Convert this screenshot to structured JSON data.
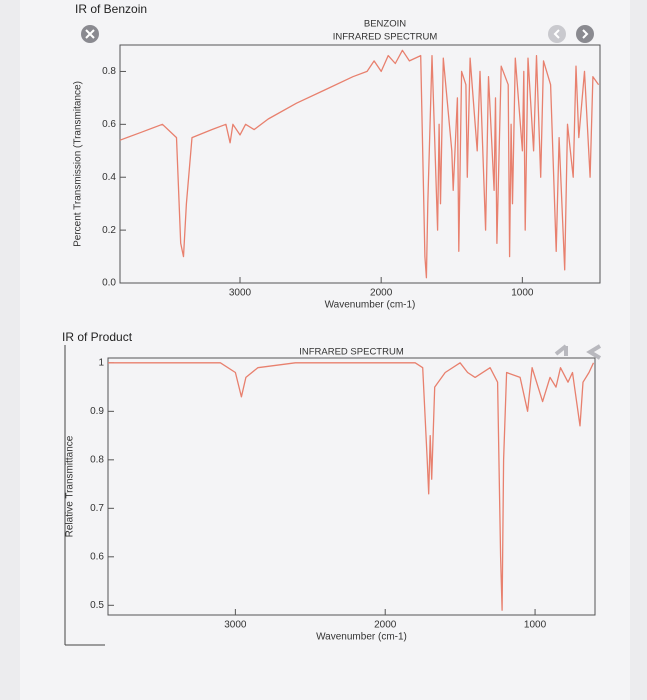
{
  "page": {
    "heading1": "IR of Benzoin",
    "heading2": "IR of Product"
  },
  "chart_data": [
    {
      "type": "line",
      "title": "BENZOIN",
      "subtitle": "INFRARED SPECTRUM",
      "x_label": "Wavenumber (cm-1)",
      "y_label": "Percent Transmission (Transmitance)",
      "color": "#e8806e",
      "x": [
        3850,
        3700,
        3550,
        3450,
        3420,
        3400,
        3380,
        3340,
        3200,
        3100,
        3070,
        3050,
        3000,
        2960,
        2900,
        2800,
        2600,
        2400,
        2200,
        2100,
        2050,
        2000,
        1950,
        1900,
        1850,
        1800,
        1720,
        1690,
        1680,
        1670,
        1640,
        1600,
        1590,
        1580,
        1560,
        1500,
        1490,
        1460,
        1450,
        1430,
        1400,
        1390,
        1370,
        1320,
        1300,
        1260,
        1240,
        1200,
        1190,
        1180,
        1150,
        1100,
        1090,
        1080,
        1070,
        1050,
        1000,
        990,
        980,
        960,
        920,
        900,
        870,
        850,
        800,
        760,
        740,
        700,
        680,
        640,
        620,
        600,
        560,
        520,
        500,
        460
      ],
      "values": [
        0.54,
        0.57,
        0.6,
        0.55,
        0.15,
        0.1,
        0.3,
        0.55,
        0.58,
        0.6,
        0.53,
        0.6,
        0.56,
        0.6,
        0.58,
        0.62,
        0.68,
        0.73,
        0.78,
        0.8,
        0.84,
        0.8,
        0.86,
        0.83,
        0.88,
        0.84,
        0.86,
        0.1,
        0.02,
        0.3,
        0.86,
        0.2,
        0.6,
        0.3,
        0.85,
        0.5,
        0.35,
        0.7,
        0.12,
        0.8,
        0.75,
        0.4,
        0.85,
        0.5,
        0.8,
        0.2,
        0.78,
        0.35,
        0.7,
        0.15,
        0.82,
        0.75,
        0.1,
        0.6,
        0.3,
        0.85,
        0.5,
        0.8,
        0.2,
        0.85,
        0.5,
        0.86,
        0.4,
        0.84,
        0.75,
        0.12,
        0.55,
        0.05,
        0.6,
        0.4,
        0.82,
        0.55,
        0.8,
        0.4,
        0.78,
        0.75
      ],
      "xlim": [
        3850,
        450
      ],
      "xticks": [
        3000,
        2000,
        1000
      ],
      "ylim": [
        0,
        0.9
      ],
      "yticks": [
        {
          "value": 0,
          "label": "0.0"
        },
        0.2,
        0.4,
        0.6,
        0.8
      ]
    },
    {
      "type": "line",
      "title": "INFRARED SPECTRUM",
      "x_label": "Wavenumber (cm-1)",
      "y_label": "Relative Transmittance",
      "color": "#e8806e",
      "x": [
        3850,
        3500,
        3100,
        3000,
        2960,
        2930,
        2850,
        2600,
        2000,
        1800,
        1750,
        1720,
        1710,
        1700,
        1690,
        1670,
        1600,
        1500,
        1450,
        1400,
        1300,
        1250,
        1230,
        1220,
        1210,
        1190,
        1100,
        1050,
        1020,
        950,
        900,
        860,
        830,
        780,
        750,
        700,
        680,
        640,
        610
      ],
      "values": [
        1,
        1,
        1,
        0.98,
        0.93,
        0.97,
        0.99,
        1,
        1,
        1,
        0.99,
        0.8,
        0.73,
        0.85,
        0.76,
        0.95,
        0.98,
        1,
        0.98,
        0.97,
        0.99,
        0.96,
        0.6,
        0.49,
        0.8,
        0.98,
        0.97,
        0.9,
        0.99,
        0.92,
        0.97,
        0.95,
        0.99,
        0.96,
        0.98,
        0.87,
        0.96,
        0.98,
        1
      ],
      "xlim": [
        3850,
        600
      ],
      "xticks": [
        3000,
        2000,
        1000
      ],
      "ylim": [
        0.48,
        1.01
      ],
      "yticks": [
        0.5,
        0.6,
        0.7,
        0.8,
        0.9,
        1
      ]
    }
  ]
}
